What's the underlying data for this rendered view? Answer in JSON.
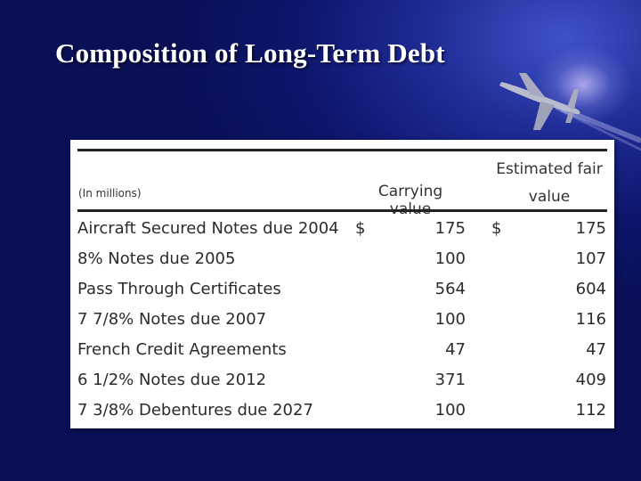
{
  "slide": {
    "title": "Composition of Long-Term Debt"
  },
  "colors": {
    "background": "#0d156b",
    "title": "#ffffff",
    "table_bg": "#ffffff",
    "table_text": "#2b2b2b"
  },
  "decorations": [
    "airplane-icon",
    "sky-glow"
  ],
  "table": {
    "units_label": "(In millions)",
    "columns": {
      "carrying": "Carrying value",
      "fair_line1": "Estimated fair",
      "fair_line2": "value"
    },
    "rows": [
      {
        "label": "Aircraft Secured Notes due 2004",
        "currency1": "$",
        "carrying": "175",
        "currency2": "$",
        "fair": "175"
      },
      {
        "label": "8% Notes due 2005",
        "currency1": "",
        "carrying": "100",
        "currency2": "",
        "fair": "107"
      },
      {
        "label": "Pass Through Certificates",
        "currency1": "",
        "carrying": "564",
        "currency2": "",
        "fair": "604"
      },
      {
        "label": "7 7/8% Notes due 2007",
        "currency1": "",
        "carrying": "100",
        "currency2": "",
        "fair": "116"
      },
      {
        "label": "French Credit Agreements",
        "currency1": "",
        "carrying": "47",
        "currency2": "",
        "fair": "47"
      },
      {
        "label": "6 1/2% Notes due 2012",
        "currency1": "",
        "carrying": "371",
        "currency2": "",
        "fair": "409"
      },
      {
        "label": "7 3/8% Debentures due 2027",
        "currency1": "",
        "carrying": "100",
        "currency2": "",
        "fair": "112"
      }
    ]
  }
}
